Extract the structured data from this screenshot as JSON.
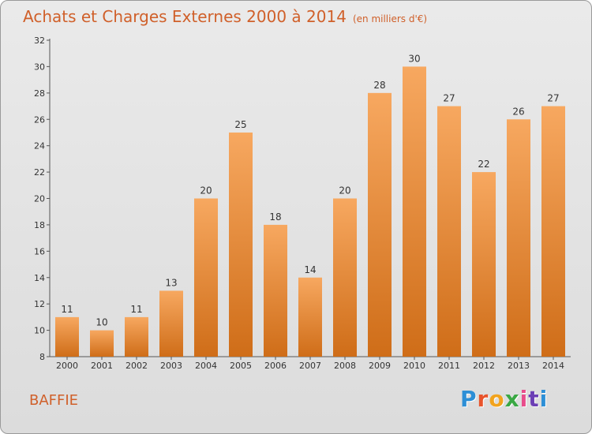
{
  "header": {
    "title": "Achats et Charges Externes 2000 à 2014",
    "unit": "(en milliers d'€)"
  },
  "footer": {
    "commune": "BAFFIE",
    "brand_letters": [
      "P",
      "r",
      "o",
      "x",
      "i",
      "t",
      "i"
    ],
    "brand_colors": [
      "#2d8fd6",
      "#e8542c",
      "#f2a31d",
      "#3aa844",
      "#e84c8b",
      "#6c3fb5",
      "#2d8fd6"
    ]
  },
  "colors": {
    "accent": "#d0602a",
    "bar_top": "#f7a860",
    "bar_bottom": "#cf6d18"
  },
  "chart_data": {
    "type": "bar",
    "title": "Achats et Charges Externes 2000 à 2014",
    "subtitle": "(en milliers d'€)",
    "categories": [
      "2000",
      "2001",
      "2002",
      "2003",
      "2004",
      "2005",
      "2006",
      "2007",
      "2008",
      "2009",
      "2010",
      "2011",
      "2012",
      "2013",
      "2014"
    ],
    "values": [
      11,
      10,
      11,
      13,
      20,
      25,
      18,
      14,
      20,
      28,
      30,
      27,
      22,
      26,
      27
    ],
    "ylim": [
      8,
      32
    ],
    "yticks": [
      8,
      10,
      12,
      14,
      16,
      18,
      20,
      22,
      24,
      26,
      28,
      30,
      32
    ],
    "grid": false,
    "legend": "none"
  }
}
